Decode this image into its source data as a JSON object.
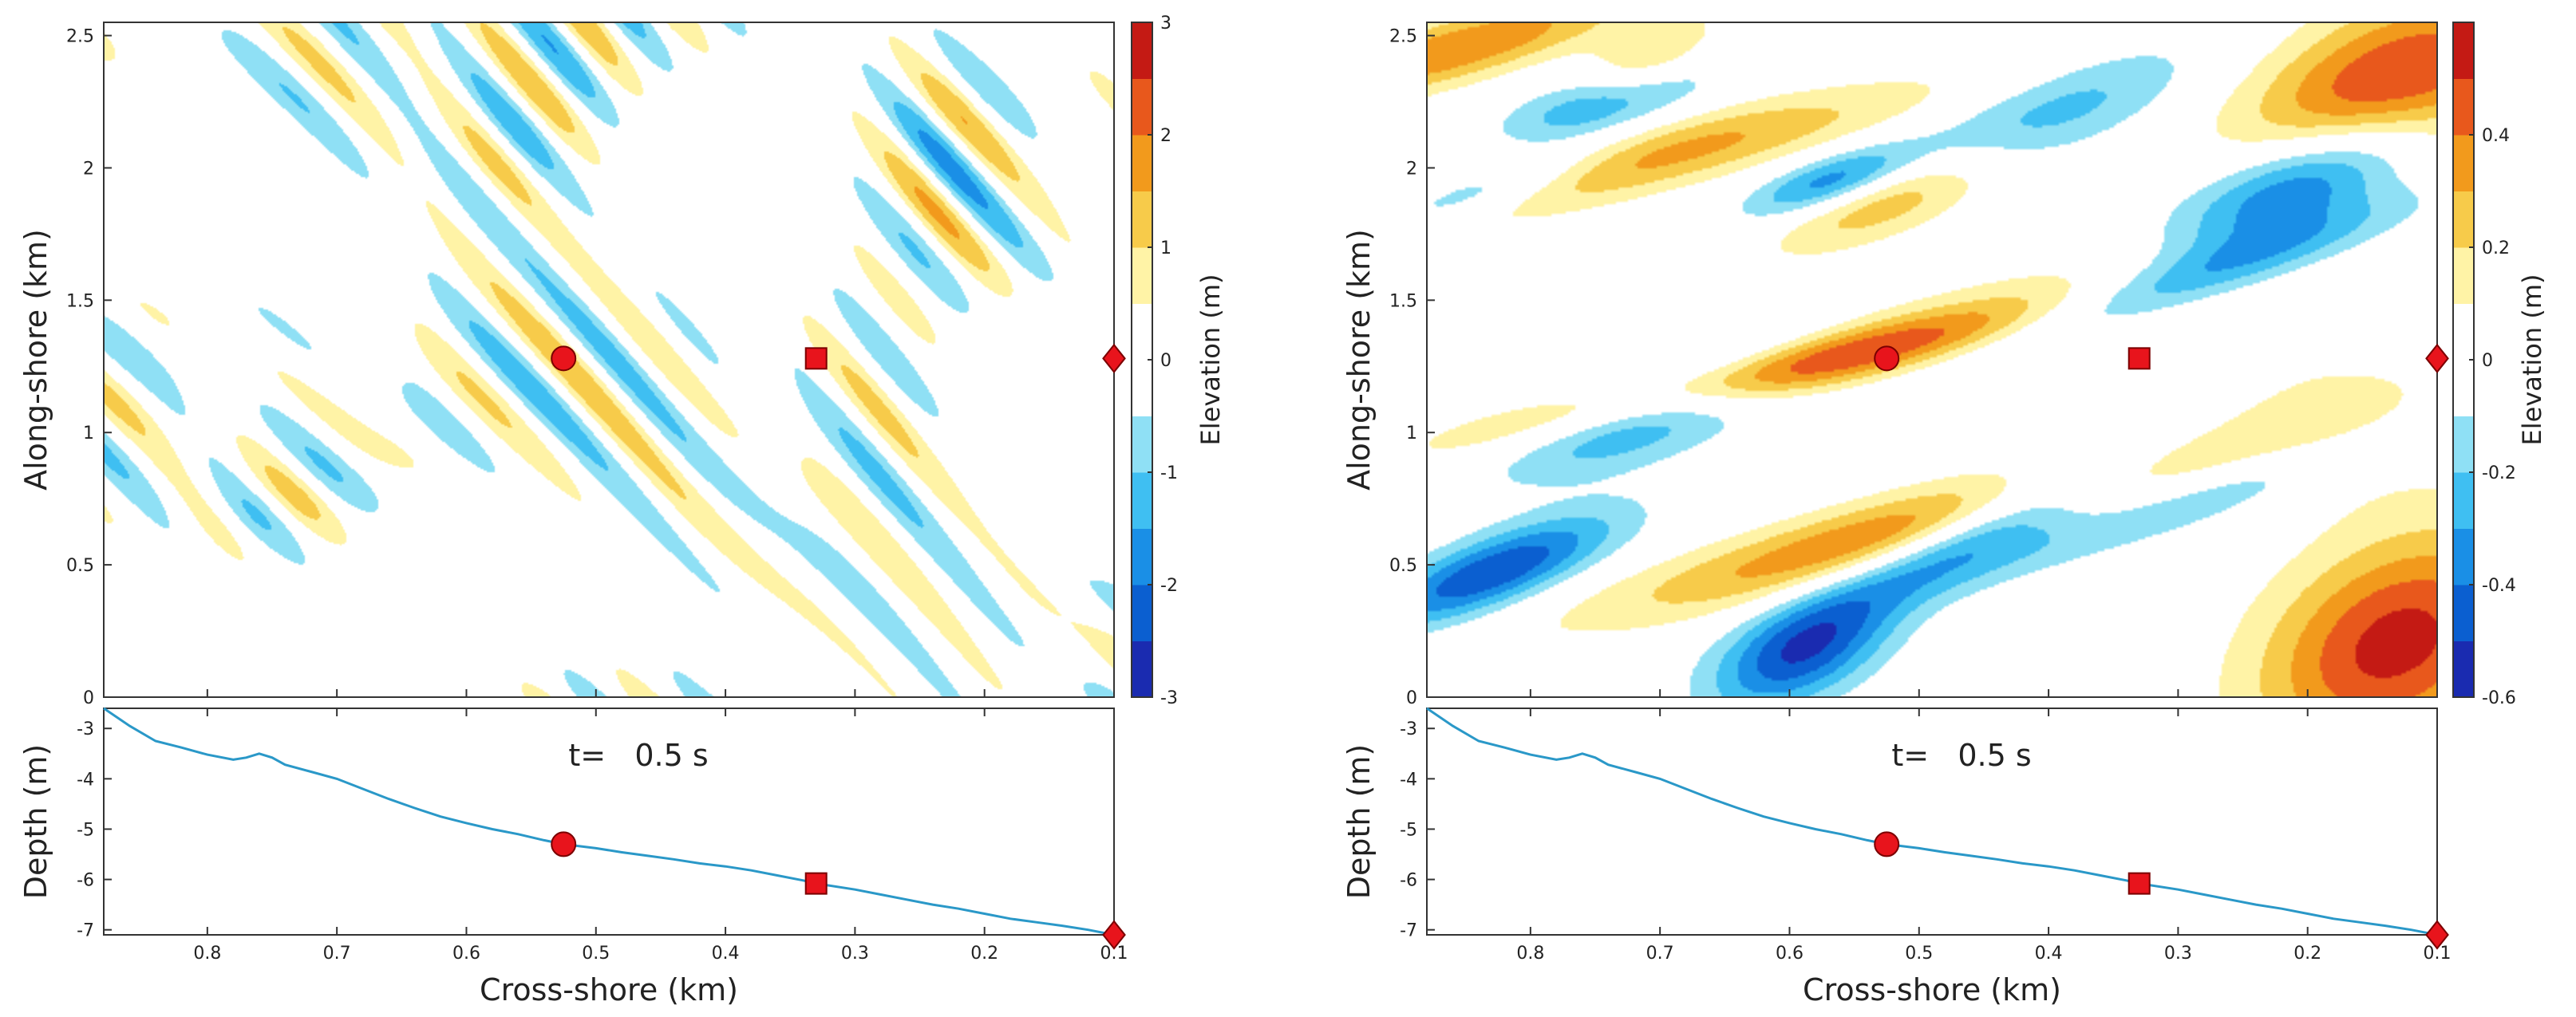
{
  "figure": "Wave elevation maps with cross-shore bathymetry profiles",
  "colors": {
    "marker": "#e8141c",
    "marker_edge": "#7a0000",
    "profile_line": "#2a98c8",
    "frame": "#333333",
    "colormap": [
      "#1a2bb0",
      "#0b5fd0",
      "#1a8fe6",
      "#3fbff2",
      "#8fe0f5",
      "#ffffff",
      "#ffffff",
      "#fff3a6",
      "#f7cb4a",
      "#f29a1c",
      "#e8581c",
      "#c41a14"
    ]
  },
  "chart_data": [
    {
      "id": "left-elevation",
      "type": "heatmap",
      "title": "",
      "xlabel": "",
      "ylabel": "Along-shore (km)",
      "xlim": [
        0.88,
        0.1
      ],
      "ylim": [
        0,
        2.55
      ],
      "ytick_labels": [
        "0",
        "0.5",
        "1",
        "1.5",
        "2",
        "2.5"
      ],
      "ytick_values": [
        0,
        0.5,
        1,
        1.5,
        2,
        2.5
      ],
      "colorbar": {
        "label": "Elevation (m)",
        "range": [
          -3,
          3
        ],
        "tick_values": [
          -3,
          -2,
          -1,
          0,
          1,
          2,
          3
        ],
        "tick_labels": [
          "-3",
          "-2",
          "-1",
          "0",
          "1",
          "2",
          "3"
        ]
      },
      "markers": [
        {
          "shape": "circle",
          "x": 0.525,
          "y": 1.28
        },
        {
          "shape": "square",
          "x": 0.33,
          "y": 1.28
        },
        {
          "shape": "diamond",
          "x": 0.1,
          "y": 1.28
        }
      ],
      "pattern": "short-crested waves, bands oriented obliquely (upper-left to lower-right)"
    },
    {
      "id": "left-depth",
      "type": "line",
      "xlabel": "Cross-shore (km)",
      "ylabel": "Depth (m)",
      "annotation": "t=   0.5 s",
      "xlim": [
        0.88,
        0.1
      ],
      "ylim": [
        -7.1,
        -2.6
      ],
      "xtick_labels": [
        "0.8",
        "0.7",
        "0.6",
        "0.5",
        "0.4",
        "0.3",
        "0.2",
        "0.1"
      ],
      "xtick_values": [
        0.8,
        0.7,
        0.6,
        0.5,
        0.4,
        0.3,
        0.2,
        0.1
      ],
      "ytick_labels": [
        "-7",
        "-6",
        "-5",
        "-4",
        "-3"
      ],
      "ytick_values": [
        -7,
        -6,
        -5,
        -4,
        -3
      ],
      "series": [
        {
          "name": "depth profile",
          "x": [
            0.88,
            0.86,
            0.84,
            0.82,
            0.8,
            0.78,
            0.77,
            0.76,
            0.75,
            0.74,
            0.72,
            0.7,
            0.68,
            0.66,
            0.64,
            0.62,
            0.6,
            0.58,
            0.56,
            0.54,
            0.525,
            0.5,
            0.48,
            0.46,
            0.44,
            0.42,
            0.4,
            0.38,
            0.36,
            0.34,
            0.33,
            0.3,
            0.28,
            0.26,
            0.24,
            0.22,
            0.2,
            0.18,
            0.16,
            0.14,
            0.12,
            0.1
          ],
          "y": [
            -2.6,
            -2.95,
            -3.25,
            -3.38,
            -3.52,
            -3.62,
            -3.58,
            -3.5,
            -3.58,
            -3.72,
            -3.86,
            -4.0,
            -4.2,
            -4.4,
            -4.58,
            -4.75,
            -4.88,
            -5.0,
            -5.1,
            -5.22,
            -5.3,
            -5.38,
            -5.46,
            -5.53,
            -5.6,
            -5.68,
            -5.74,
            -5.82,
            -5.92,
            -6.02,
            -6.08,
            -6.2,
            -6.3,
            -6.4,
            -6.5,
            -6.58,
            -6.68,
            -6.78,
            -6.85,
            -6.92,
            -7.0,
            -7.1
          ]
        }
      ],
      "markers": [
        {
          "shape": "circle",
          "x": 0.525,
          "y": -5.3
        },
        {
          "shape": "square",
          "x": 0.33,
          "y": -6.08
        },
        {
          "shape": "diamond",
          "x": 0.1,
          "y": -7.1
        }
      ]
    },
    {
      "id": "right-elevation",
      "type": "heatmap",
      "title": "",
      "xlabel": "",
      "ylabel": "Along-shore (km)",
      "xlim": [
        0.88,
        0.1
      ],
      "ylim": [
        0,
        2.55
      ],
      "ytick_labels": [
        "0",
        "0.5",
        "1",
        "1.5",
        "2",
        "2.5"
      ],
      "ytick_values": [
        0,
        0.5,
        1,
        1.5,
        2,
        2.5
      ],
      "colorbar": {
        "label": "Elevation (m)",
        "range": [
          -0.6,
          0.6
        ],
        "tick_values": [
          -0.6,
          -0.4,
          -0.2,
          0,
          0.2,
          0.4
        ],
        "tick_labels": [
          "-0.6",
          "-0.4",
          "-0.2",
          "0",
          "0.2",
          "0.4"
        ]
      },
      "markers": [
        {
          "shape": "circle",
          "x": 0.525,
          "y": 1.28
        },
        {
          "shape": "square",
          "x": 0.33,
          "y": 1.28
        },
        {
          "shape": "diamond",
          "x": 0.1,
          "y": 1.28
        }
      ],
      "blobs": [
        {
          "x": 0.62,
          "y": 1.22,
          "sx": 0.05,
          "sy": 0.22,
          "rot": -40,
          "v": 0.55
        },
        {
          "x": 0.49,
          "y": 0.65,
          "sx": 0.06,
          "sy": 0.28,
          "rot": -35,
          "v": 0.46
        },
        {
          "x": 0.8,
          "y": 1.95,
          "sx": 0.06,
          "sy": 0.28,
          "rot": -40,
          "v": 0.46
        },
        {
          "x": 0.86,
          "y": 2.45,
          "sx": 0.05,
          "sy": 0.18,
          "rot": -30,
          "v": 0.4
        },
        {
          "x": 0.13,
          "y": 2.32,
          "sx": 0.07,
          "sy": 0.25,
          "rot": -10,
          "v": 0.55
        },
        {
          "x": 0.13,
          "y": 0.2,
          "sx": 0.07,
          "sy": 0.3,
          "rot": -5,
          "v": 0.55
        },
        {
          "x": 0.52,
          "y": 1.88,
          "sx": 0.04,
          "sy": 0.15,
          "rot": -20,
          "v": 0.3
        },
        {
          "x": 0.71,
          "y": 2.4,
          "sx": 0.03,
          "sy": 0.12,
          "rot": -10,
          "v": 0.26
        },
        {
          "x": 0.42,
          "y": 1.45,
          "sx": 0.08,
          "sy": 0.22,
          "rot": -30,
          "v": 0.14
        },
        {
          "x": 0.18,
          "y": 1.05,
          "sx": 0.06,
          "sy": 0.2,
          "rot": 0,
          "v": 0.12
        },
        {
          "x": 0.85,
          "y": 1.9,
          "sx": 0.04,
          "sy": 0.14,
          "rot": -30,
          "v": -0.55
        },
        {
          "x": 0.7,
          "y": 1.1,
          "sx": 0.05,
          "sy": 0.18,
          "rot": -20,
          "v": -0.45
        },
        {
          "x": 0.44,
          "y": 0.65,
          "sx": 0.04,
          "sy": 0.22,
          "rot": -20,
          "v": -0.5
        },
        {
          "x": 0.31,
          "y": 1.55,
          "sx": 0.04,
          "sy": 0.25,
          "rot": -30,
          "v": -0.32
        },
        {
          "x": 0.2,
          "y": 1.95,
          "sx": 0.05,
          "sy": 0.2,
          "rot": -15,
          "v": -0.5
        },
        {
          "x": 0.83,
          "y": 0.47,
          "sx": 0.04,
          "sy": 0.16,
          "rot": -20,
          "v": -0.5
        },
        {
          "x": 0.59,
          "y": 0.17,
          "sx": 0.04,
          "sy": 0.16,
          "rot": -10,
          "v": -0.5
        },
        {
          "x": 0.74,
          "y": 2.25,
          "sx": 0.04,
          "sy": 0.12,
          "rot": -20,
          "v": -0.35
        },
        {
          "x": 0.57,
          "y": 1.95,
          "sx": 0.03,
          "sy": 0.1,
          "rot": -20,
          "v": -0.35
        },
        {
          "x": 0.4,
          "y": 2.2,
          "sx": 0.05,
          "sy": 0.2,
          "rot": -20,
          "v": -0.25
        },
        {
          "x": 0.28,
          "y": 0.75,
          "sx": 0.04,
          "sy": 0.25,
          "rot": -30,
          "v": -0.2
        }
      ]
    },
    {
      "id": "right-depth",
      "type": "line",
      "xlabel": "Cross-shore (km)",
      "ylabel": "Depth (m)",
      "annotation": "t=   0.5 s",
      "xlim": [
        0.88,
        0.1
      ],
      "ylim": [
        -7.1,
        -2.6
      ],
      "xtick_labels": [
        "0.8",
        "0.7",
        "0.6",
        "0.5",
        "0.4",
        "0.3",
        "0.2",
        "0.1"
      ],
      "xtick_values": [
        0.8,
        0.7,
        0.6,
        0.5,
        0.4,
        0.3,
        0.2,
        0.1
      ],
      "ytick_labels": [
        "-7",
        "-6",
        "-5",
        "-4",
        "-3"
      ],
      "ytick_values": [
        -7,
        -6,
        -5,
        -4,
        -3
      ],
      "series": [
        {
          "name": "depth profile",
          "x": [
            0.88,
            0.86,
            0.84,
            0.82,
            0.8,
            0.78,
            0.77,
            0.76,
            0.75,
            0.74,
            0.72,
            0.7,
            0.68,
            0.66,
            0.64,
            0.62,
            0.6,
            0.58,
            0.56,
            0.54,
            0.525,
            0.5,
            0.48,
            0.46,
            0.44,
            0.42,
            0.4,
            0.38,
            0.36,
            0.34,
            0.33,
            0.3,
            0.28,
            0.26,
            0.24,
            0.22,
            0.2,
            0.18,
            0.16,
            0.14,
            0.12,
            0.1
          ],
          "y": [
            -2.6,
            -2.95,
            -3.25,
            -3.38,
            -3.52,
            -3.62,
            -3.58,
            -3.5,
            -3.58,
            -3.72,
            -3.86,
            -4.0,
            -4.2,
            -4.4,
            -4.58,
            -4.75,
            -4.88,
            -5.0,
            -5.1,
            -5.22,
            -5.3,
            -5.38,
            -5.46,
            -5.53,
            -5.6,
            -5.68,
            -5.74,
            -5.82,
            -5.92,
            -6.02,
            -6.08,
            -6.2,
            -6.3,
            -6.4,
            -6.5,
            -6.58,
            -6.68,
            -6.78,
            -6.85,
            -6.92,
            -7.0,
            -7.1
          ]
        }
      ],
      "markers": [
        {
          "shape": "circle",
          "x": 0.525,
          "y": -5.3
        },
        {
          "shape": "square",
          "x": 0.33,
          "y": -6.08
        },
        {
          "shape": "diamond",
          "x": 0.1,
          "y": -7.1
        }
      ]
    }
  ]
}
